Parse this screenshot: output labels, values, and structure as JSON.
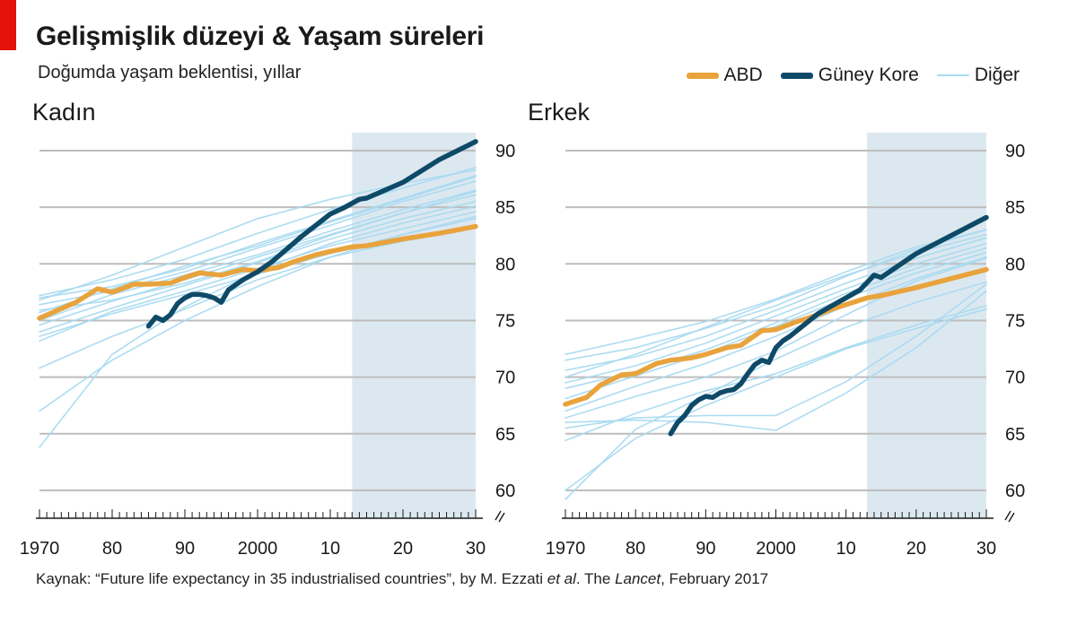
{
  "header": {
    "title": "Gelişmişlik düzeyi & Yaşam süreleri",
    "subtitle": "Doğumda yaşam beklentisi, yıllar"
  },
  "legend": [
    {
      "name": "ABD",
      "color": "#e8a33d"
    },
    {
      "name": "Güney Kore",
      "color": "#0e4a68"
    },
    {
      "name": "Diğer",
      "color": "#a9daf0"
    }
  ],
  "source": {
    "prefix": "Kaynak: “Future life expectancy in 35 industrialised countries”, by M. Ezzati ",
    "etal": "et al",
    "middle": ". The ",
    "journal": "Lancet",
    "suffix": ", February 2017"
  },
  "chart_data": [
    {
      "type": "line",
      "title": "Kadın",
      "x_tick_labels": [
        "1970",
        "80",
        "90",
        "2000",
        "10",
        "20",
        "30"
      ],
      "x_ticks": [
        1970,
        1980,
        1990,
        2000,
        2010,
        2020,
        2030
      ],
      "xlim": [
        1970,
        2030
      ],
      "ylim": [
        58,
        90
      ],
      "y_ticks": [
        60,
        65,
        70,
        75,
        80,
        85,
        90
      ],
      "y_axis_break": true,
      "projection_start": 2013,
      "grid": true,
      "legend_position": "top-right",
      "series": [
        {
          "name": "ABD",
          "x": [
            1970,
            1975,
            1978,
            1980,
            1983,
            1985,
            1988,
            1990,
            1992,
            1995,
            1998,
            2000,
            2003,
            2005,
            2008,
            2010,
            2013,
            2015,
            2020,
            2025,
            2030
          ],
          "y": [
            75.2,
            76.6,
            77.8,
            77.5,
            78.2,
            78.2,
            78.3,
            78.8,
            79.2,
            79.0,
            79.5,
            79.4,
            79.7,
            80.2,
            80.8,
            81.1,
            81.5,
            81.6,
            82.2,
            82.7,
            83.3
          ]
        },
        {
          "name": "Güney Kore",
          "x": [
            1985,
            1986,
            1987,
            1988,
            1989,
            1990,
            1991,
            1992,
            1993,
            1994,
            1995,
            1996,
            1998,
            2000,
            2002,
            2004,
            2006,
            2008,
            2010,
            2012,
            2014,
            2015,
            2020,
            2025,
            2030
          ],
          "y": [
            74.5,
            75.3,
            75.0,
            75.5,
            76.5,
            77.0,
            77.3,
            77.3,
            77.2,
            77.0,
            76.6,
            77.7,
            78.6,
            79.3,
            80.2,
            81.3,
            82.4,
            83.4,
            84.4,
            85.0,
            85.7,
            85.8,
            87.2,
            89.2,
            90.8
          ]
        },
        {
          "name": "Diğer",
          "x": [
            1970,
            1980,
            1990,
            2000,
            2010,
            2020,
            2030
          ],
          "y": [
            75.0,
            77.3,
            79.0,
            80.8,
            82.9,
            84.8,
            86.5
          ]
        },
        {
          "name": "Diğer",
          "x": [
            1970,
            1980,
            1990,
            2000,
            2010,
            2020,
            2030
          ],
          "y": [
            77.2,
            78.6,
            80.4,
            82.7,
            84.8,
            86.7,
            88.5
          ]
        },
        {
          "name": "Diğer",
          "x": [
            1970,
            1980,
            1990,
            2000,
            2010,
            2020,
            2030
          ],
          "y": [
            74.0,
            76.1,
            78.1,
            80.1,
            82.2,
            84.0,
            85.5
          ]
        },
        {
          "name": "Diğer",
          "x": [
            1970,
            1980,
            1990,
            2000,
            2010,
            2020,
            2030
          ],
          "y": [
            76.4,
            77.6,
            79.3,
            81.4,
            83.4,
            85.5,
            87.3
          ]
        },
        {
          "name": "Diğer",
          "x": [
            1970,
            1980,
            1990,
            2000,
            2010,
            2020,
            2030
          ],
          "y": [
            73.2,
            75.8,
            77.6,
            79.6,
            81.6,
            83.1,
            84.6
          ]
        },
        {
          "name": "Diğer",
          "x": [
            1970,
            1980,
            1990,
            2000,
            2010,
            2020,
            2030
          ],
          "y": [
            75.7,
            77.8,
            79.8,
            81.6,
            83.7,
            85.7,
            87.7
          ]
        },
        {
          "name": "Diğer",
          "x": [
            1970,
            1980,
            1990,
            2000,
            2010,
            2020,
            2030
          ],
          "y": [
            74.6,
            76.7,
            78.6,
            80.6,
            82.6,
            84.5,
            86.1
          ]
        },
        {
          "name": "Diğer",
          "x": [
            1970,
            1980,
            1990,
            2000,
            2010,
            2020,
            2030
          ],
          "y": [
            77.0,
            78.0,
            79.6,
            81.8,
            83.8,
            85.8,
            87.8
          ]
        },
        {
          "name": "Diğer",
          "x": [
            1970,
            1980,
            1990,
            2000,
            2010,
            2020,
            2030
          ],
          "y": [
            75.9,
            76.8,
            78.3,
            80.2,
            82.5,
            84.5,
            86.4
          ]
        },
        {
          "name": "Diğer",
          "x": [
            1970,
            1980,
            1990,
            2000,
            2010,
            2020,
            2030
          ],
          "y": [
            70.8,
            73.6,
            76.0,
            78.6,
            80.6,
            82.0,
            83.2
          ]
        },
        {
          "name": "Diğer",
          "x": [
            1970,
            1980,
            1990,
            2000,
            2010,
            2020,
            2030
          ],
          "y": [
            76.8,
            79.0,
            81.5,
            84.0,
            85.7,
            87.1,
            88.3
          ]
        },
        {
          "name": "Diğer",
          "x": [
            1970,
            1980,
            1990,
            2000,
            2010,
            2020,
            2030
          ],
          "y": [
            73.6,
            75.6,
            77.3,
            79.1,
            80.9,
            82.6,
            84.0
          ]
        },
        {
          "name": "Diğer",
          "x": [
            1970,
            1980,
            1990,
            2000,
            2010,
            2020,
            2030
          ],
          "y": [
            67.0,
            71.5,
            75.0,
            78.0,
            80.6,
            82.6,
            84.2
          ]
        },
        {
          "name": "Diğer",
          "x": [
            1970,
            1980,
            1990,
            2000,
            2010,
            2020,
            2030
          ],
          "y": [
            63.8,
            72.0,
            76.2,
            79.4,
            81.8,
            83.6,
            85.1
          ]
        }
      ]
    },
    {
      "type": "line",
      "title": "Erkek",
      "x_tick_labels": [
        "1970",
        "80",
        "90",
        "2000",
        "10",
        "20",
        "30"
      ],
      "x_ticks": [
        1970,
        1980,
        1990,
        2000,
        2010,
        2020,
        2030
      ],
      "xlim": [
        1970,
        2030
      ],
      "ylim": [
        58,
        90
      ],
      "y_ticks": [
        60,
        65,
        70,
        75,
        80,
        85,
        90
      ],
      "y_axis_break": true,
      "projection_start": 2013,
      "grid": true,
      "series": [
        {
          "name": "ABD",
          "x": [
            1970,
            1973,
            1975,
            1978,
            1980,
            1983,
            1985,
            1988,
            1990,
            1993,
            1995,
            1998,
            2000,
            2003,
            2005,
            2008,
            2010,
            2013,
            2015,
            2020,
            2025,
            2030
          ],
          "y": [
            67.6,
            68.2,
            69.3,
            70.2,
            70.3,
            71.2,
            71.5,
            71.7,
            72.0,
            72.6,
            72.8,
            74.1,
            74.2,
            74.9,
            75.3,
            76.0,
            76.4,
            77.0,
            77.2,
            77.9,
            78.7,
            79.5
          ]
        },
        {
          "name": "Güney Kore",
          "x": [
            1985,
            1986,
            1987,
            1988,
            1989,
            1990,
            1991,
            1992,
            1993,
            1994,
            1995,
            1996,
            1997,
            1998,
            1999,
            2000,
            2001,
            2002,
            2004,
            2006,
            2008,
            2010,
            2012,
            2014,
            2015,
            2020,
            2025,
            2030
          ],
          "y": [
            65.0,
            66.0,
            66.6,
            67.5,
            68.0,
            68.3,
            68.2,
            68.6,
            68.8,
            68.9,
            69.4,
            70.3,
            71.1,
            71.5,
            71.3,
            72.6,
            73.2,
            73.6,
            74.6,
            75.6,
            76.3,
            77.0,
            77.7,
            79.0,
            78.8,
            80.9,
            82.5,
            84.1
          ]
        },
        {
          "name": "Diğer",
          "x": [
            1970,
            1980,
            1990,
            2000,
            2010,
            2020,
            2030
          ],
          "y": [
            69.5,
            71.0,
            73.0,
            75.4,
            77.8,
            80.0,
            81.8
          ]
        },
        {
          "name": "Diğer",
          "x": [
            1970,
            1980,
            1990,
            2000,
            2010,
            2020,
            2030
          ],
          "y": [
            72.0,
            73.4,
            74.9,
            76.9,
            79.3,
            81.5,
            83.0
          ]
        },
        {
          "name": "Diğer",
          "x": [
            1970,
            1980,
            1990,
            2000,
            2010,
            2020,
            2030
          ],
          "y": [
            68.1,
            70.1,
            72.1,
            74.5,
            77.0,
            79.2,
            81.0
          ]
        },
        {
          "name": "Diğer",
          "x": [
            1970,
            1980,
            1990,
            2000,
            2010,
            2020,
            2030
          ],
          "y": [
            70.6,
            71.8,
            73.6,
            75.9,
            78.3,
            80.5,
            82.3
          ]
        },
        {
          "name": "Diğer",
          "x": [
            1970,
            1980,
            1990,
            2000,
            2010,
            2020,
            2030
          ],
          "y": [
            67.0,
            69.2,
            71.2,
            73.6,
            76.3,
            78.7,
            80.6
          ]
        },
        {
          "name": "Diğer",
          "x": [
            1970,
            1980,
            1990,
            2000,
            2010,
            2020,
            2030
          ],
          "y": [
            71.5,
            72.6,
            74.3,
            76.3,
            78.9,
            81.3,
            83.0
          ]
        },
        {
          "name": "Diğer",
          "x": [
            1970,
            1980,
            1990,
            2000,
            2010,
            2020,
            2030
          ],
          "y": [
            69.0,
            70.5,
            72.4,
            74.8,
            77.4,
            79.6,
            81.4
          ]
        },
        {
          "name": "Diğer",
          "x": [
            1970,
            1980,
            1990,
            2000,
            2010,
            2020,
            2030
          ],
          "y": [
            70.0,
            72.0,
            74.4,
            76.8,
            79.0,
            81.0,
            82.6
          ]
        },
        {
          "name": "Diğer",
          "x": [
            1970,
            1980,
            1990,
            2000,
            2010,
            2020,
            2030
          ],
          "y": [
            66.4,
            68.3,
            70.0,
            72.3,
            75.5,
            78.5,
            80.5
          ]
        },
        {
          "name": "Diğer",
          "x": [
            1970,
            1980,
            1990,
            2000,
            2010,
            2020,
            2030
          ],
          "y": [
            64.4,
            66.8,
            68.8,
            70.3,
            72.6,
            74.6,
            76.3
          ]
        },
        {
          "name": "Diğer",
          "x": [
            1970,
            1980,
            1990,
            2000,
            2010,
            2020,
            2030
          ],
          "y": [
            66.0,
            66.2,
            66.0,
            65.3,
            68.6,
            72.6,
            77.6
          ]
        },
        {
          "name": "Diğer",
          "x": [
            1970,
            1980,
            1990,
            2000,
            2010,
            2020,
            2030
          ],
          "y": [
            65.5,
            66.4,
            66.6,
            66.6,
            69.6,
            73.6,
            78.2
          ]
        },
        {
          "name": "Diğer",
          "x": [
            1970,
            1980,
            1990,
            2000,
            2010,
            2020,
            2030
          ],
          "y": [
            60.0,
            64.6,
            67.5,
            70.0,
            72.5,
            74.3,
            76.0
          ]
        },
        {
          "name": "Diğer",
          "x": [
            1970,
            1980,
            1990,
            2000,
            2010,
            2020,
            2030
          ],
          "y": [
            59.2,
            65.4,
            68.4,
            71.6,
            74.4,
            76.6,
            78.4
          ]
        }
      ]
    }
  ]
}
